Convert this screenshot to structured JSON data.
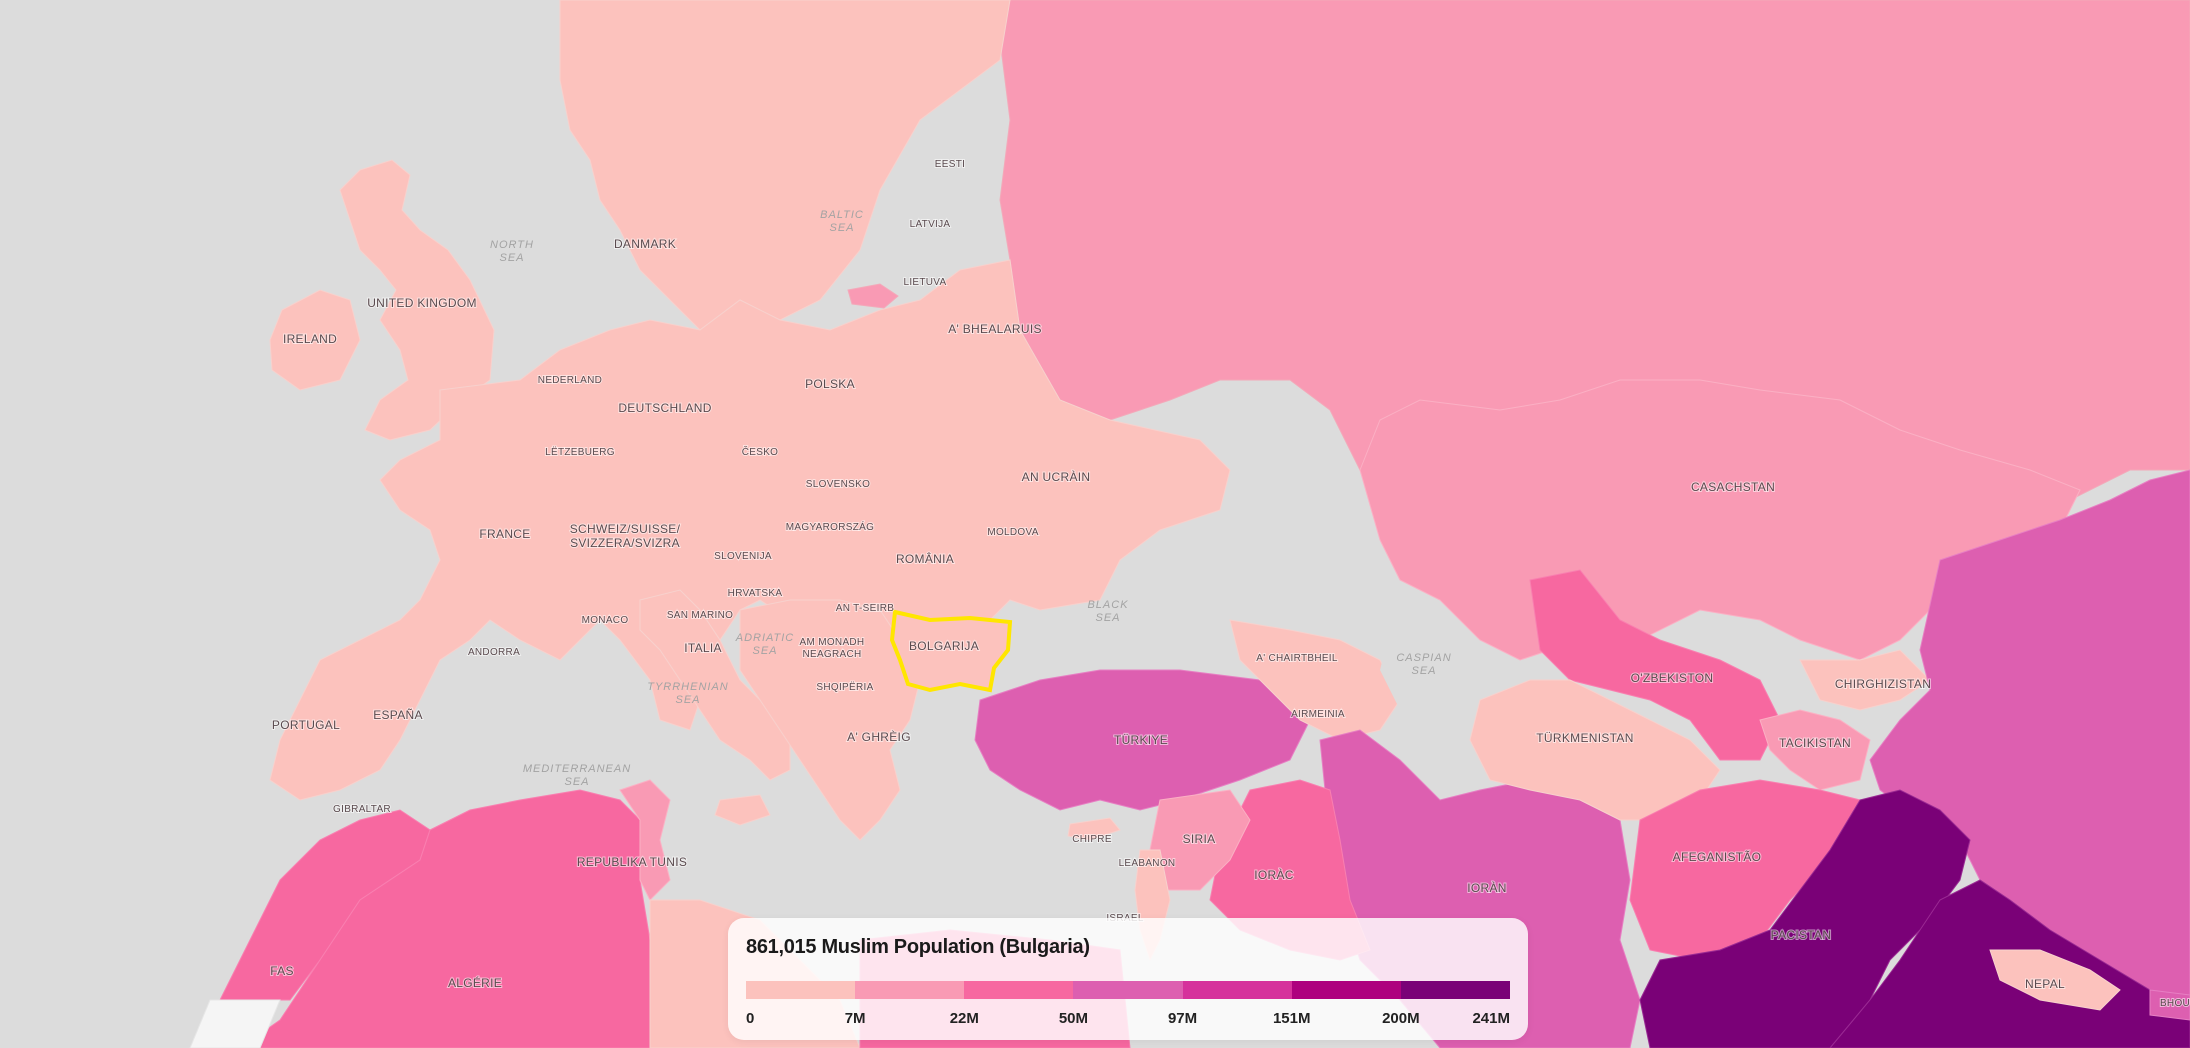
{
  "legend": {
    "title": "861,015 Muslim Population (Bulgaria)",
    "bins": [
      "#fcc2bd",
      "#f99ab4",
      "#f768a0",
      "#dd5fb0",
      "#d6329c",
      "#ae017e",
      "#7a0177"
    ],
    "ticks": [
      "0",
      "7M",
      "22M",
      "50M",
      "97M",
      "151M",
      "200M",
      "241M"
    ]
  },
  "map": {
    "selected_country": "BULGARIJA",
    "highlight_color": "#ffe600",
    "countries": {
      "united_kingdom": "UNITED KINGDOM",
      "ireland": "IRELAND",
      "danmark": "DANMARK",
      "eesti": "EESTI",
      "latvija": "LATVIJA",
      "lietuva": "LIETUVA",
      "belarus": "A' BHEALARUIS",
      "polska": "POLSKA",
      "nederland": "NEDERLAND",
      "deutschland": "DEUTSCHLAND",
      "letzebuerg": "LËTZEBUERG",
      "cesko": "ČESKO",
      "slovensko": "SLOVENSKO",
      "ukraine": "AN UCRÀIN",
      "france": "FRANCE",
      "schweiz": "SCHWEIZ/SUISSE/",
      "schweiz2": "SVIZZERA/SVIZRA",
      "magyarorszag": "MAGYARORSZÁG",
      "moldova": "MOLDOVA",
      "slovenija": "SLOVENIJA",
      "romania": "ROMÂNIA",
      "hrvatska": "HRVATSKA",
      "serbia": "AN T-SEIRB",
      "monaco": "MONACO",
      "san_marino": "SAN MARINO",
      "andorra": "ANDORRA",
      "italia": "ITALIA",
      "montenegro": "AM MONADH",
      "montenegro2": "NEAGRACH",
      "bulgarija": "BOLGARIJA",
      "shqiperia": "SHQIPËRIA",
      "portugal": "PORTUGAL",
      "espana": "ESPAÑA",
      "greece": "A' GHRÈIG",
      "turkiye": "TÜRKIYE",
      "georgia": "A' CHAIRTBHEIL",
      "armenia": "AIRMEINIA",
      "gibraltar": "GIBRALTAR",
      "tunisia": "REPUBLIKA TUNIS",
      "cyprus": "CHIPRE",
      "lebanon": "LEABANON",
      "israel": "ISRAEL",
      "syria": "SIRIA",
      "iraq": "IORÀC",
      "iran": "IORÀN",
      "kazakhstan": "CASACHSTAN",
      "uzbekistan": "O'ZBEKISTON",
      "kyrgyzstan": "CHIRGHIZISTAN",
      "turkmenistan": "TÜRKMENISTAN",
      "tajikistan": "TACIKISTAN",
      "afghanistan": "AFEGANISTÃO",
      "pakistan": "PACISTAN",
      "nepal": "NEPAL",
      "bhutan": "BHOU",
      "morocco": "FAS",
      "algeria": "ALGÉRIE"
    },
    "seas": {
      "north_1": "NORTH",
      "north_2": "SEA",
      "baltic_1": "BALTIC",
      "baltic_2": "SEA",
      "black_1": "BLACK",
      "black_2": "SEA",
      "adriatic_1": "ADRIATIC",
      "adriatic_2": "SEA",
      "tyrrhenian_1": "TYRRHENIAN",
      "tyrrhenian_2": "SEA",
      "mediterranean_1": "MEDITERRANEAN",
      "mediterranean_2": "SEA",
      "caspian_1": "CASPIAN",
      "caspian_2": "SEA"
    }
  }
}
